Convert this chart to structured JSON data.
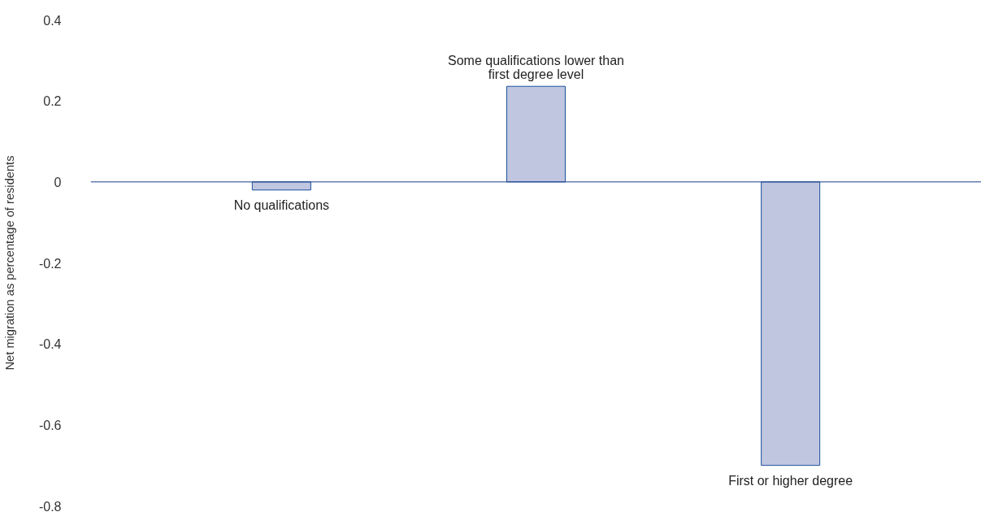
{
  "chart_data": {
    "type": "bar",
    "ylabel": "Net migration as percentage of residents",
    "categories": [
      "No qualifications",
      "Some qualifications lower than first degree level",
      "First or higher degree"
    ],
    "series": [
      {
        "color": "#c0c6e0",
        "values": [
          -0.02,
          0.236,
          -0.7
        ]
      }
    ],
    "ylim": [
      -0.8,
      0.4
    ],
    "ref_lines": [
      {
        "axis": "y",
        "value": 0,
        "color": "#1a3f8c"
      }
    ],
    "yticks": [
      {
        "value": 0.4,
        "label": "0.4"
      },
      {
        "value": 0.2,
        "label": "0.2"
      },
      0,
      {
        "value": -0.2,
        "label": "-0.2"
      },
      {
        "value": -0.4,
        "label": "-0.4"
      },
      {
        "value": -0.6,
        "label": "-0.6"
      },
      {
        "value": -0.8,
        "label": "-0.8"
      }
    ],
    "tick_labels": "y",
    "grid": false
  }
}
